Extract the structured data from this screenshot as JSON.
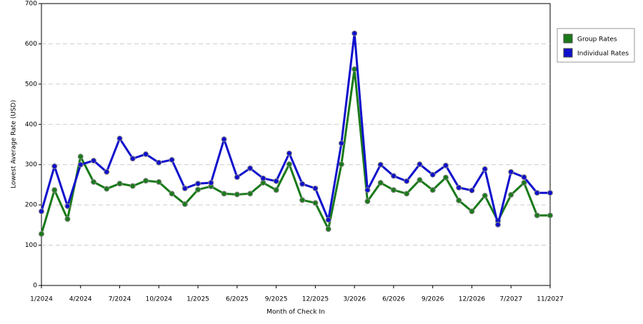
{
  "chart_data": {
    "type": "line",
    "x_label": "Month of Check In",
    "y_label": "Lowest Average Rate (USD)",
    "categories": [
      "1/2024",
      null,
      null,
      "4/2024",
      null,
      null,
      "7/2024",
      null,
      null,
      "10/2024",
      null,
      null,
      "1/2025",
      null,
      null,
      "6/2025",
      null,
      null,
      "9/2025",
      null,
      null,
      "12/2025",
      null,
      null,
      "3/2026",
      null,
      null,
      "6/2026",
      null,
      null,
      "9/2026",
      null,
      null,
      "12/2026",
      null,
      null,
      "7/2027",
      null,
      null,
      "11/2027"
    ],
    "series": [
      {
        "name": "Group Rates",
        "color": "#1a7a1a",
        "values": [
          128,
          237,
          165,
          320,
          257,
          240,
          253,
          247,
          260,
          257,
          228,
          202,
          238,
          246,
          228,
          226,
          228,
          255,
          237,
          301,
          212,
          205,
          140,
          301,
          537,
          209,
          255,
          237,
          228,
          262,
          237,
          268,
          211,
          184,
          223,
          160,
          225,
          255,
          174,
          174
        ]
      },
      {
        "name": "Individual Rates",
        "color": "#1010cc",
        "values": [
          184,
          296,
          197,
          300,
          310,
          282,
          365,
          315,
          326,
          305,
          312,
          241,
          253,
          255,
          363,
          269,
          291,
          266,
          259,
          328,
          252,
          241,
          163,
          353,
          626,
          237,
          300,
          272,
          259,
          301,
          275,
          298,
          243,
          236,
          289,
          151,
          282,
          269,
          230,
          230
        ]
      }
    ],
    "ylim": [
      0,
      700
    ],
    "yticks": [
      0,
      100,
      200,
      300,
      400,
      500,
      600,
      700
    ],
    "grid": true
  }
}
